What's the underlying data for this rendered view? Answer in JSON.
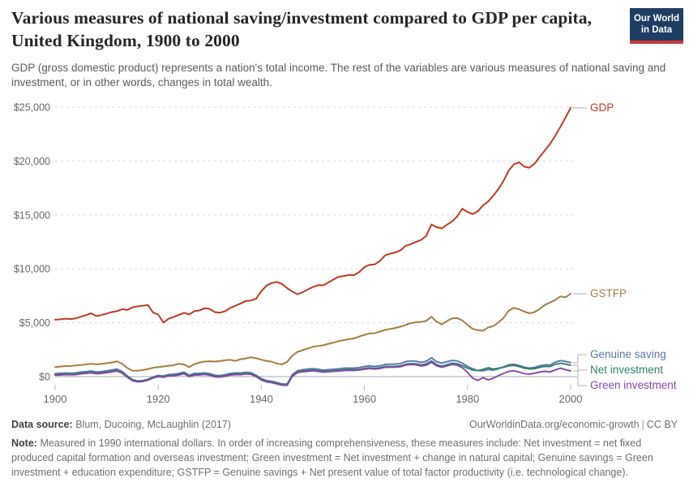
{
  "header": {
    "title": "Various measures of national saving/investment compared to GDP per capita, United Kingdom, 1900 to 2000",
    "subtitle": "GDP (gross domestic product) represents a nation's total income. The rest of the variables are various measures of national saving and investment, or in other words, changes in total wealth.",
    "logo": {
      "line1": "Our World",
      "line2": "in Data",
      "bg_color": "#1d3d63",
      "stripe_color": "#cc3b33"
    }
  },
  "footer": {
    "source_label": "Data source:",
    "source_text": "Blum, Ducoing, McLaughlin (2017)",
    "link_text": "OurWorldinData.org/economic-growth",
    "separator": "|",
    "license": "CC BY",
    "note_label": "Note:",
    "note_text": "Measured in 1990 international dollars. In order of increasing comprehensiveness, these measures include: Net investment = net fixed produced capital formation and overseas investment; Green investment = Net investment + change in natural capital; Genuine savings = Green investment + education expenditure; GSTFP = Genuine savings + Net present value of total factor productivity (i.e. technological change)."
  },
  "chart_data": {
    "type": "line",
    "title": "Various measures of national saving/investment compared to GDP per capita, United Kingdom, 1900 to 2000",
    "xlabel": "",
    "ylabel": "",
    "x_range": [
      1900,
      2000
    ],
    "x_step": 1,
    "ylim": [
      -900,
      25000
    ],
    "grid": "horizontal-dashed",
    "legend_position": "right",
    "yticks": [
      0,
      5000,
      10000,
      15000,
      20000,
      25000
    ],
    "ytick_labels": [
      "$0",
      "$5,000",
      "$10,000",
      "$15,000",
      "$20,000",
      "$25,000"
    ],
    "xticks": [
      1900,
      1920,
      1940,
      1960,
      1980,
      2000
    ],
    "series": [
      {
        "name": "GDP",
        "color": "#bf3b21",
        "label_y": 133,
        "values": [
          5280,
          5320,
          5380,
          5340,
          5410,
          5560,
          5700,
          5870,
          5620,
          5710,
          5850,
          5990,
          6070,
          6260,
          6180,
          6420,
          6520,
          6570,
          6640,
          5940,
          5760,
          5010,
          5370,
          5540,
          5730,
          5920,
          5760,
          6080,
          6140,
          6350,
          6280,
          5980,
          5930,
          6070,
          6380,
          6580,
          6790,
          7020,
          7060,
          7240,
          7920,
          8450,
          8680,
          8790,
          8600,
          8210,
          7890,
          7640,
          7830,
          8080,
          8310,
          8490,
          8470,
          8730,
          9010,
          9260,
          9330,
          9430,
          9410,
          9710,
          10160,
          10380,
          10410,
          10740,
          11240,
          11400,
          11530,
          11720,
          12130,
          12290,
          12490,
          12690,
          13060,
          14120,
          13860,
          13750,
          14090,
          14400,
          14870,
          15580,
          15270,
          15080,
          15340,
          15890,
          16240,
          16790,
          17410,
          18180,
          19120,
          19700,
          19890,
          19470,
          19380,
          19750,
          20390,
          20980,
          21600,
          22330,
          23170,
          24020,
          24940
        ]
      },
      {
        "name": "GSTFP",
        "color": "#a87b3e",
        "label_y": 362,
        "values": [
          890,
          930,
          980,
          990,
          1030,
          1080,
          1130,
          1190,
          1140,
          1190,
          1240,
          1310,
          1420,
          1190,
          800,
          560,
          540,
          610,
          700,
          820,
          880,
          940,
          1010,
          1050,
          1190,
          1130,
          870,
          1160,
          1300,
          1400,
          1420,
          1390,
          1440,
          1520,
          1560,
          1450,
          1620,
          1690,
          1790,
          1700,
          1570,
          1450,
          1390,
          1210,
          1130,
          1370,
          1940,
          2290,
          2450,
          2610,
          2760,
          2840,
          2910,
          3040,
          3150,
          3290,
          3380,
          3470,
          3550,
          3720,
          3870,
          4010,
          4020,
          4190,
          4340,
          4420,
          4510,
          4640,
          4800,
          4970,
          5040,
          5080,
          5170,
          5560,
          5090,
          4840,
          5160,
          5410,
          5440,
          5200,
          4790,
          4430,
          4310,
          4250,
          4560,
          4680,
          5030,
          5450,
          6130,
          6380,
          6250,
          6040,
          5870,
          5990,
          6280,
          6650,
          6880,
          7100,
          7440,
          7360,
          7690
        ]
      },
      {
        "name": "Genuine saving",
        "color": "#5776ae",
        "label_y": 437,
        "values": [
          280,
          300,
          330,
          320,
          350,
          430,
          470,
          520,
          430,
          470,
          540,
          620,
          700,
          480,
          60,
          -280,
          -400,
          -370,
          -250,
          -40,
          110,
          60,
          190,
          210,
          300,
          420,
          130,
          290,
          310,
          350,
          280,
          120,
          100,
          170,
          290,
          340,
          330,
          400,
          360,
          130,
          -190,
          -360,
          -430,
          -550,
          -680,
          -690,
          180,
          550,
          640,
          700,
          740,
          690,
          600,
          640,
          680,
          720,
          780,
          800,
          790,
          840,
          930,
          1000,
          950,
          1000,
          1130,
          1150,
          1160,
          1210,
          1390,
          1450,
          1420,
          1310,
          1420,
          1750,
          1380,
          1250,
          1380,
          1500,
          1450,
          1240,
          960,
          720,
          560,
          540,
          660,
          600,
          720,
          900,
          1090,
          1150,
          1030,
          870,
          800,
          850,
          1000,
          1090,
          1080,
          1340,
          1480,
          1410,
          1300
        ]
      },
      {
        "name": "Net investment",
        "color": "#2c8465",
        "label_y": 456,
        "values": [
          200,
          220,
          250,
          240,
          260,
          330,
          370,
          420,
          330,
          370,
          430,
          510,
          590,
          390,
          10,
          -310,
          -420,
          -380,
          -260,
          -60,
          60,
          10,
          130,
          150,
          230,
          340,
          60,
          210,
          230,
          270,
          200,
          50,
          30,
          100,
          210,
          260,
          250,
          320,
          280,
          60,
          -250,
          -420,
          -490,
          -610,
          -730,
          -740,
          90,
          440,
          520,
          570,
          610,
          560,
          480,
          520,
          550,
          580,
          630,
          650,
          640,
          680,
          760,
          820,
          770,
          820,
          940,
          950,
          960,
          1000,
          1160,
          1210,
          1190,
          1080,
          1190,
          1450,
          1110,
          980,
          1100,
          1250,
          1200,
          1020,
          780,
          610,
          560,
          680,
          820,
          700,
          780,
          860,
          1000,
          1040,
          930,
          780,
          710,
          740,
          860,
          940,
          930,
          1140,
          1240,
          1160,
          1060
        ]
      },
      {
        "name": "Green investment",
        "color": "#8745ab",
        "label_y": 475,
        "values": [
          130,
          150,
          180,
          170,
          190,
          260,
          300,
          350,
          260,
          300,
          360,
          440,
          520,
          320,
          -60,
          -380,
          -490,
          -450,
          -330,
          -130,
          -10,
          -60,
          60,
          80,
          160,
          270,
          -10,
          140,
          160,
          200,
          130,
          -20,
          -40,
          30,
          140,
          190,
          180,
          250,
          210,
          -10,
          -320,
          -490,
          -560,
          -680,
          -800,
          -810,
          20,
          370,
          450,
          500,
          540,
          490,
          410,
          450,
          480,
          510,
          560,
          580,
          570,
          610,
          690,
          750,
          700,
          750,
          860,
          870,
          880,
          920,
          1070,
          1120,
          1100,
          990,
          1060,
          1330,
          1000,
          870,
          990,
          1130,
          1060,
          830,
          400,
          -150,
          -350,
          -100,
          -300,
          -150,
          100,
          300,
          480,
          540,
          420,
          270,
          230,
          320,
          430,
          490,
          440,
          620,
          780,
          650,
          520
        ]
      }
    ]
  }
}
